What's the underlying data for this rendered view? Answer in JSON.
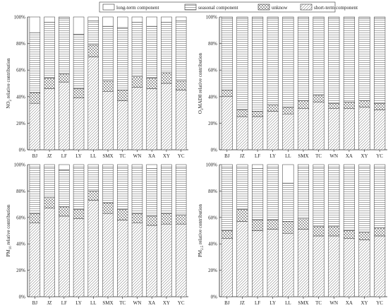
{
  "legend": {
    "items": [
      {
        "key": "long",
        "label": "long-term component"
      },
      {
        "key": "seasonal",
        "label": "seasonal component"
      },
      {
        "key": "unknow",
        "label": "unknow"
      },
      {
        "key": "short",
        "label": "short-term component"
      }
    ]
  },
  "chart_data": [
    {
      "type": "bar",
      "stacked": true,
      "ylabel_main": "NO",
      "ylabel_sub": "2",
      "ylabel_rest": " relative contribution",
      "ylim": [
        0,
        100
      ],
      "yticks": [
        "0%",
        "20%",
        "40%",
        "60%",
        "80%",
        "100%"
      ],
      "categories": [
        "BJ",
        "JZ",
        "LF",
        "LY",
        "LL",
        "SMX",
        "TC",
        "WN",
        "XA",
        "XY",
        "YC"
      ],
      "series": [
        {
          "key": "short",
          "values": [
            35,
            46,
            51,
            39,
            70,
            44,
            37,
            47,
            46,
            50,
            45
          ]
        },
        {
          "key": "unknow",
          "values": [
            8,
            8,
            6,
            7,
            9,
            8,
            8,
            8,
            8,
            8,
            7
          ]
        },
        {
          "key": "seasonal",
          "values": [
            45,
            42,
            42,
            41,
            18,
            41,
            47,
            41,
            39,
            38,
            45
          ]
        },
        {
          "key": "long",
          "values": [
            12,
            4,
            1,
            13,
            3,
            7,
            8,
            4,
            7,
            4,
            3
          ]
        }
      ]
    },
    {
      "type": "bar",
      "stacked": true,
      "ylabel_main": "O",
      "ylabel_sub": "3",
      "ylabel_rest": "MAD8 relative contribution",
      "ylim": [
        0,
        100
      ],
      "yticks": [
        "0%",
        "20%",
        "40%",
        "60%",
        "80%",
        "100%"
      ],
      "categories": [
        "BJ",
        "JZ",
        "LF",
        "LY",
        "LL",
        "SMX",
        "TC",
        "WN",
        "XA",
        "XY",
        "YC"
      ],
      "series": [
        {
          "key": "short",
          "values": [
            40,
            25,
            25,
            29,
            27,
            31,
            36,
            31,
            31,
            32,
            30
          ]
        },
        {
          "key": "unknow",
          "values": [
            5,
            5,
            4,
            5,
            5,
            6,
            5,
            4,
            5,
            5,
            5
          ]
        },
        {
          "key": "seasonal",
          "values": [
            54,
            69,
            70,
            65,
            67,
            62,
            58,
            64,
            63,
            62,
            64
          ]
        },
        {
          "key": "long",
          "values": [
            1,
            1,
            1,
            1,
            1,
            1,
            1,
            1,
            1,
            1,
            1
          ]
        }
      ]
    },
    {
      "type": "bar",
      "stacked": true,
      "ylabel_main": "PM",
      "ylabel_sub": "10",
      "ylabel_rest": " relative contribution",
      "ylim": [
        0,
        100
      ],
      "yticks": [
        "0%",
        "20%",
        "40%",
        "60%",
        "80%",
        "100%"
      ],
      "categories": [
        "BJ",
        "JZ",
        "LF",
        "LY",
        "LL",
        "SMX",
        "TC",
        "WN",
        "XA",
        "XY",
        "YC"
      ],
      "series": [
        {
          "key": "short",
          "values": [
            56,
            67,
            61,
            59,
            73,
            63,
            58,
            56,
            54,
            55,
            55
          ]
        },
        {
          "key": "unknow",
          "values": [
            7,
            8,
            7,
            7,
            7,
            8,
            8,
            7,
            7,
            8,
            7
          ]
        },
        {
          "key": "seasonal",
          "values": [
            35,
            23,
            28,
            32,
            18,
            27,
            32,
            35,
            36,
            35,
            36
          ]
        },
        {
          "key": "long",
          "values": [
            2,
            2,
            4,
            2,
            2,
            2,
            2,
            2,
            3,
            2,
            2
          ]
        }
      ]
    },
    {
      "type": "bar",
      "stacked": true,
      "ylabel_main": "PM",
      "ylabel_sub": "2.5",
      "ylabel_rest": " relative contribution",
      "ylim": [
        0,
        100
      ],
      "yticks": [
        "0%",
        "20%",
        "40%",
        "60%",
        "80%",
        "100%"
      ],
      "categories": [
        "BJ",
        "JZ",
        "LF",
        "LY",
        "LL",
        "SMX",
        "TC",
        "WN",
        "XA",
        "XY",
        "YC"
      ],
      "series": [
        {
          "key": "short",
          "values": [
            44,
            57,
            50,
            51,
            48,
            51,
            46,
            46,
            44,
            43,
            46
          ]
        },
        {
          "key": "unknow",
          "values": [
            6,
            9,
            8,
            7,
            9,
            8,
            7,
            7,
            6,
            6,
            6
          ]
        },
        {
          "key": "seasonal",
          "values": [
            48,
            32,
            39,
            40,
            29,
            39,
            45,
            45,
            48,
            49,
            46
          ]
        },
        {
          "key": "long",
          "values": [
            2,
            2,
            3,
            2,
            14,
            2,
            2,
            2,
            2,
            2,
            2
          ]
        }
      ]
    }
  ]
}
